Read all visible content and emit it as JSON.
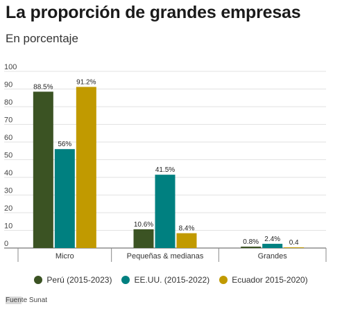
{
  "title": "La proporción de grandes empresas",
  "subtitle": "En porcentaje",
  "source_prefix": "Fuen",
  "source_rest": "te Sunat",
  "chart_data": {
    "type": "bar",
    "categories": [
      "Micro",
      "Pequeñas & medianas",
      "Grandes"
    ],
    "ylim": [
      0,
      100
    ],
    "yticks": [
      0,
      10,
      20,
      30,
      40,
      50,
      60,
      70,
      80,
      90,
      100
    ],
    "grid": true,
    "legend_position": "bottom",
    "series": [
      {
        "name": "Perú (2015-2023)",
        "color": "#3b5323",
        "values": [
          88.5,
          10.6,
          0.8
        ],
        "labels": [
          "88.5%",
          "10.6%",
          "0.8%"
        ]
      },
      {
        "name": "EE.UU. (2015-2022)",
        "color": "#008080",
        "values": [
          56,
          41.5,
          2.4
        ],
        "labels": [
          "56%",
          "41.5%",
          "2.4%"
        ]
      },
      {
        "name": "Ecuador 2015-2020)",
        "color": "#c19a00",
        "values": [
          91.2,
          8.4,
          0.4
        ],
        "labels": [
          "91.2%",
          "8.4%",
          "0.4"
        ]
      }
    ]
  }
}
